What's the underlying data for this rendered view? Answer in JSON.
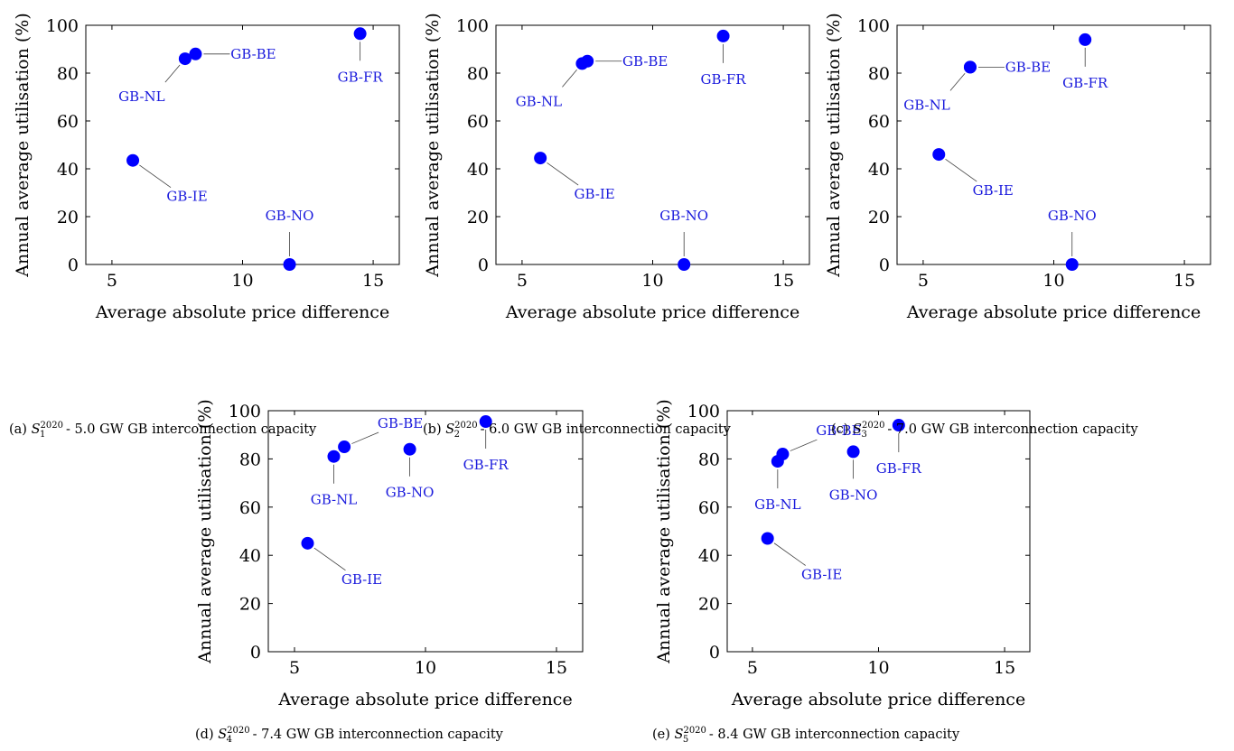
{
  "figure": {
    "colors": {
      "marker": "#0000ff",
      "label": "#1a1adc",
      "axis": "#000000",
      "leader": "#404040"
    },
    "panels": [
      {
        "caption": {
          "prefix": "(a)",
          "symbol": "S",
          "sub": "1",
          "sup": "2020",
          "text": "- 5.0 GW GB interconnection capacity"
        }
      },
      {
        "caption": {
          "prefix": "(b)",
          "symbol": "S",
          "sub": "2",
          "sup": "2020",
          "text": "- 6.0 GW GB interconnection capacity"
        }
      },
      {
        "caption": {
          "prefix": "(c)",
          "symbol": "S",
          "sub": "3",
          "sup": "2020",
          "text": "- 7.0 GW GB interconnection capacity"
        }
      },
      {
        "caption": {
          "prefix": "(d)",
          "symbol": "S",
          "sub": "4",
          "sup": "2020",
          "text": "- 7.4 GW GB interconnection capacity"
        }
      },
      {
        "caption": {
          "prefix": "(e)",
          "symbol": "S",
          "sub": "5",
          "sup": "2020",
          "text": "- 8.4 GW GB interconnection capacity"
        }
      }
    ]
  },
  "chart_data": [
    {
      "type": "scatter",
      "xlabel": "Average absolute price difference",
      "ylabel": "Annual average utilisation (%)",
      "xlim": [
        4,
        16
      ],
      "ylim": [
        0,
        100
      ],
      "xticks": [
        5,
        10,
        15
      ],
      "yticks": [
        0,
        20,
        40,
        60,
        80,
        100
      ],
      "grid": false,
      "points": [
        {
          "label": "GB-NL",
          "x": 7.8,
          "y": 86,
          "label_pos": "below-left"
        },
        {
          "label": "GB-BE",
          "x": 8.2,
          "y": 88,
          "label_pos": "right"
        },
        {
          "label": "GB-FR",
          "x": 14.5,
          "y": 96.5,
          "label_pos": "below"
        },
        {
          "label": "GB-IE",
          "x": 5.8,
          "y": 43.5,
          "label_pos": "below-right"
        },
        {
          "label": "GB-NO",
          "x": 11.8,
          "y": 0,
          "label_pos": "above"
        }
      ]
    },
    {
      "type": "scatter",
      "xlabel": "Average absolute price difference",
      "ylabel": "Annual average utilisation (%)",
      "xlim": [
        4,
        16
      ],
      "ylim": [
        0,
        100
      ],
      "xticks": [
        5,
        10,
        15
      ],
      "yticks": [
        0,
        20,
        40,
        60,
        80,
        100
      ],
      "grid": false,
      "points": [
        {
          "label": "GB-NL",
          "x": 7.3,
          "y": 84,
          "label_pos": "below-left"
        },
        {
          "label": "GB-BE",
          "x": 7.5,
          "y": 85,
          "label_pos": "right"
        },
        {
          "label": "GB-FR",
          "x": 12.7,
          "y": 95.5,
          "label_pos": "below"
        },
        {
          "label": "GB-IE",
          "x": 5.7,
          "y": 44.5,
          "label_pos": "below-right"
        },
        {
          "label": "GB-NO",
          "x": 11.2,
          "y": 0,
          "label_pos": "above"
        }
      ]
    },
    {
      "type": "scatter",
      "xlabel": "Average absolute price difference",
      "ylabel": "Annual average utilisation (%)",
      "xlim": [
        4,
        16
      ],
      "ylim": [
        0,
        100
      ],
      "xticks": [
        5,
        10,
        15
      ],
      "yticks": [
        0,
        20,
        40,
        60,
        80,
        100
      ],
      "grid": false,
      "points": [
        {
          "label": "GB-NL",
          "x": 6.8,
          "y": 82.5,
          "label_pos": "below-left"
        },
        {
          "label": "GB-BE",
          "x": 6.8,
          "y": 82.5,
          "label_pos": "right"
        },
        {
          "label": "GB-FR",
          "x": 11.2,
          "y": 94,
          "label_pos": "below"
        },
        {
          "label": "GB-IE",
          "x": 5.6,
          "y": 46,
          "label_pos": "below-right"
        },
        {
          "label": "GB-NO",
          "x": 10.7,
          "y": 0,
          "label_pos": "above"
        }
      ]
    },
    {
      "type": "scatter",
      "xlabel": "Average absolute price difference",
      "ylabel": "Annual average utilisation (%)",
      "xlim": [
        4,
        16
      ],
      "ylim": [
        0,
        100
      ],
      "xticks": [
        5,
        10,
        15
      ],
      "yticks": [
        0,
        20,
        40,
        60,
        80,
        100
      ],
      "grid": false,
      "points": [
        {
          "label": "GB-NL",
          "x": 6.5,
          "y": 81,
          "label_pos": "below"
        },
        {
          "label": "GB-BE",
          "x": 6.9,
          "y": 85,
          "label_pos": "above-right"
        },
        {
          "label": "GB-NO",
          "x": 9.4,
          "y": 84,
          "label_pos": "below"
        },
        {
          "label": "GB-FR",
          "x": 12.3,
          "y": 95.5,
          "label_pos": "below"
        },
        {
          "label": "GB-IE",
          "x": 5.5,
          "y": 45,
          "label_pos": "below-right"
        }
      ]
    },
    {
      "type": "scatter",
      "xlabel": "Average absolute price difference",
      "ylabel": "Annual average utilisation (%)",
      "xlim": [
        4,
        16
      ],
      "ylim": [
        0,
        100
      ],
      "xticks": [
        5,
        10,
        15
      ],
      "yticks": [
        0,
        20,
        40,
        60,
        80,
        100
      ],
      "grid": false,
      "points": [
        {
          "label": "GB-NL",
          "x": 6.0,
          "y": 79,
          "label_pos": "below"
        },
        {
          "label": "GB-BE",
          "x": 6.2,
          "y": 82,
          "label_pos": "above-right"
        },
        {
          "label": "GB-NO",
          "x": 9.0,
          "y": 83,
          "label_pos": "below"
        },
        {
          "label": "GB-FR",
          "x": 10.8,
          "y": 94,
          "label_pos": "below"
        },
        {
          "label": "GB-IE",
          "x": 5.6,
          "y": 47,
          "label_pos": "below-right"
        }
      ]
    }
  ]
}
